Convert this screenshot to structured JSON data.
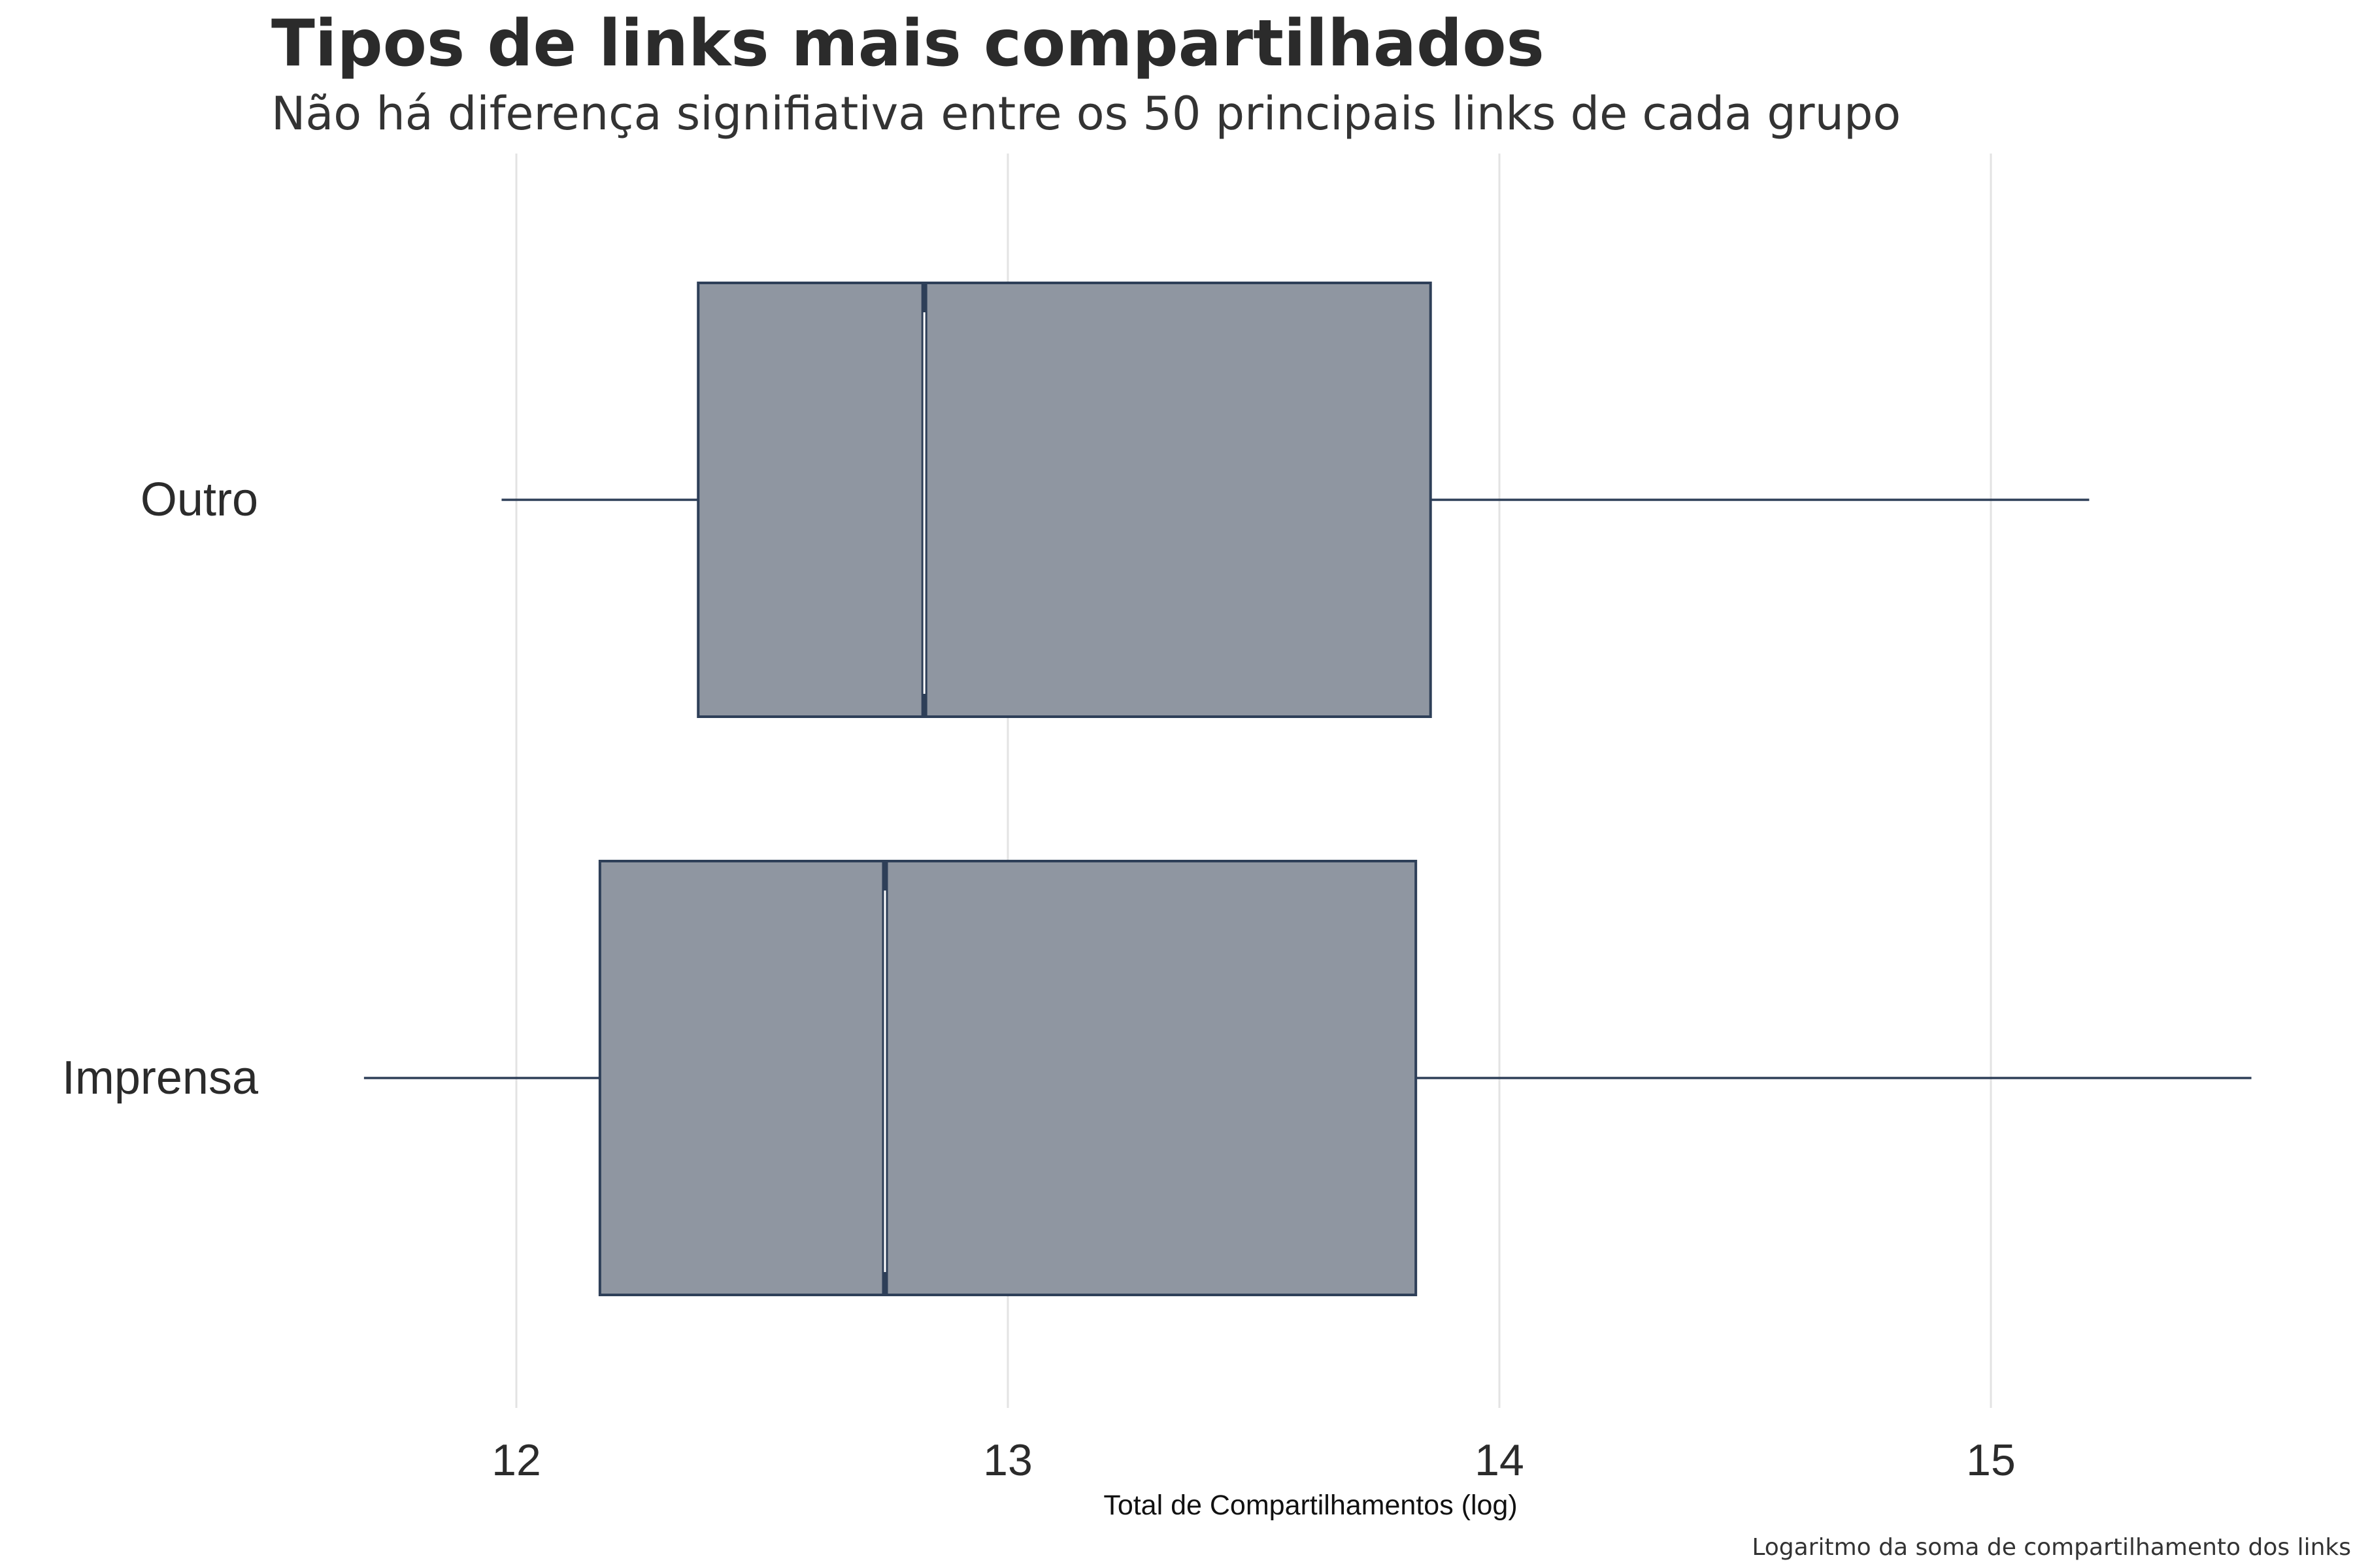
{
  "chart_data": {
    "type": "boxplot",
    "orientation": "horizontal",
    "title": "Tipos de links mais compartilhados",
    "subtitle": "Não há diferença signifiativa entre os 50 principais links de cada grupo",
    "xlabel": "Total de Compartilhamentos (log)",
    "ylabel": "",
    "caption": "Logaritmo da soma de compartilhamento dos links",
    "xlim": [
      11.4,
      15.65
    ],
    "xticks": [
      12,
      13,
      14,
      15
    ],
    "xtick_labels": [
      "12",
      "13",
      "14",
      "15"
    ],
    "grid": "vertical-major",
    "legend": "none",
    "categories": [
      "Outro",
      "Imprensa"
    ],
    "boxes": [
      {
        "category": "Outro",
        "whisker_low": 11.97,
        "q1": 12.37,
        "median": 12.83,
        "q3": 13.86,
        "whisker_high": 15.2
      },
      {
        "category": "Imprensa",
        "whisker_low": 11.69,
        "q1": 12.17,
        "median": 12.75,
        "q3": 13.83,
        "whisker_high": 15.53
      }
    ],
    "colors": {
      "box_fill": "#8f96a1",
      "box_stroke": "#2e3f58",
      "median": "#2e3f58",
      "grid": "#e3e3e3"
    }
  }
}
